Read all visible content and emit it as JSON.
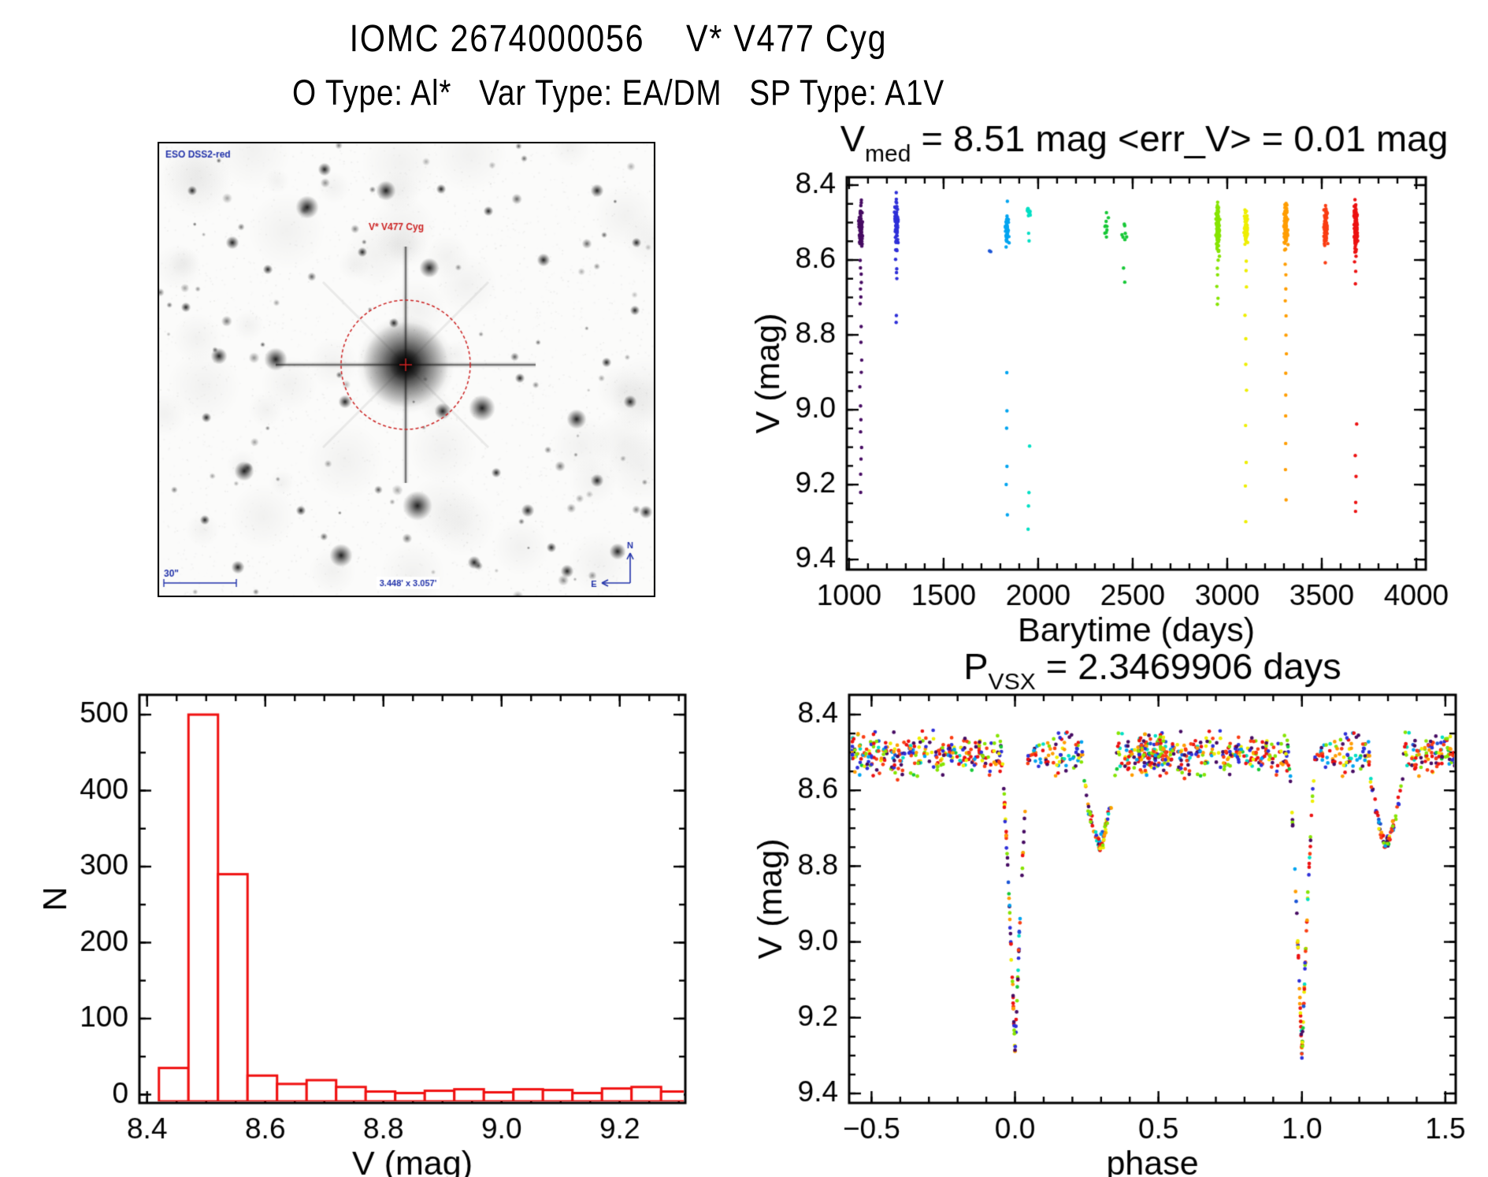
{
  "header": {
    "title": "IOMC 2674000056    V* V477 Cyg",
    "subtitle": "O Type: Al*   Var Type: EA/DM   SP Type: A1V"
  },
  "finder": {
    "survey_label": "ESO DSS2-red",
    "target_label": "V* V477 Cyg",
    "scale_label": "30\"",
    "fov_label": "3.448' x 3.057'",
    "compass_north": "N",
    "compass_east": "E",
    "label_color": "#2233aa",
    "marker_color": "#cc2222",
    "stars": [
      [
        212,
        35,
        4
      ],
      [
        290,
        62,
        6
      ],
      [
        190,
        83,
        7
      ],
      [
        95,
        128,
        4
      ],
      [
        140,
        162,
        3
      ],
      [
        345,
        160,
        6
      ],
      [
        420,
        88,
        3
      ],
      [
        558,
        62,
        4
      ],
      [
        608,
        128,
        3
      ],
      [
        78,
        272,
        5
      ],
      [
        150,
        276,
        7
      ],
      [
        238,
        330,
        4
      ],
      [
        362,
        342,
        5
      ],
      [
        460,
        300,
        3
      ],
      [
        532,
        352,
        6
      ],
      [
        606,
        214,
        3
      ],
      [
        110,
        418,
        6
      ],
      [
        182,
        468,
        3
      ],
      [
        412,
        338,
        8
      ],
      [
        330,
        462,
        9
      ],
      [
        233,
        525,
        7
      ],
      [
        470,
        468,
        4
      ],
      [
        558,
        430,
        4
      ],
      [
        300,
        230,
        3
      ],
      [
        584,
        520,
        5
      ],
      [
        520,
        545,
        4
      ],
      [
        62,
        350,
        3
      ],
      [
        44,
        62,
        3
      ],
      [
        600,
        330,
        4
      ],
      [
        102,
        540,
        4
      ],
      [
        402,
        534,
        4
      ],
      [
        490,
        150,
        4
      ],
      [
        570,
        280,
        3
      ],
      [
        260,
        140,
        3
      ],
      [
        60,
        480,
        3
      ],
      [
        500,
        515,
        3
      ],
      [
        620,
        470,
        4
      ],
      [
        36,
        210,
        3
      ],
      [
        430,
        420,
        3
      ],
      [
        360,
        60,
        3
      ]
    ]
  },
  "chart_data": [
    {
      "id": "lightcurve",
      "type": "scatter",
      "title_parts": [
        {
          "t": "V"
        },
        {
          "t": "med",
          "sub": true
        },
        {
          "t": " = 8.51 mag <err_V> = 0.01 mag"
        }
      ],
      "xlabel": "Barytime (days)",
      "ylabel": "V (mag)",
      "xlim": [
        988,
        4050
      ],
      "ylim_top": 8.379,
      "ylim_bottom": 9.427,
      "xticks": [
        1000,
        1500,
        2000,
        2500,
        3000,
        3500,
        4000
      ],
      "xtick_labels": [
        "1000",
        "1500",
        "2000",
        "2500",
        "3000",
        "3500",
        "4000"
      ],
      "xminor": 100,
      "yticks": [
        8.4,
        8.6,
        8.8,
        9.0,
        9.2,
        9.4
      ],
      "ytick_labels": [
        "8.4",
        "8.6",
        "8.8",
        "9.0",
        "9.2",
        "9.4"
      ],
      "yminor": 0.05,
      "clusters": [
        {
          "t": 1062,
          "color": "#470c63",
          "core_n": 85,
          "core_lo": 8.44,
          "core_hi": 8.59,
          "mid": [
            8.6,
            8.62,
            8.64,
            8.66,
            8.68,
            8.7,
            8.72
          ],
          "tail": [
            8.78,
            8.82,
            8.87,
            8.9,
            8.94,
            8.99,
            9.03,
            9.06,
            9.1,
            9.13,
            9.17,
            9.22
          ]
        },
        {
          "t": 1250,
          "color": "#2e2fd8",
          "core_n": 75,
          "core_lo": 8.42,
          "core_hi": 8.58,
          "mid": [
            8.6,
            8.62,
            8.63,
            8.65
          ],
          "tail": [
            8.75,
            8.77
          ]
        },
        {
          "t": 1755,
          "color": "#1b55d6",
          "core_n": 2,
          "core_lo": 8.565,
          "core_hi": 8.585,
          "mid": [],
          "tail": []
        },
        {
          "t": 1835,
          "color": "#00a4f0",
          "core_n": 45,
          "core_lo": 8.46,
          "core_hi": 8.57,
          "mid": [
            8.44
          ],
          "tail": [
            8.9,
            9.0,
            9.05,
            9.15,
            9.2,
            9.28
          ]
        },
        {
          "t": 1950,
          "color": "#00dfc4",
          "core_n": 9,
          "core_lo": 8.45,
          "core_hi": 8.5,
          "mid": [
            8.53,
            8.55
          ],
          "tail": [
            9.1,
            9.22,
            9.26,
            9.32
          ]
        },
        {
          "t": 2360,
          "color": "#17c837",
          "core_n": 10,
          "core_lo": 8.47,
          "core_hi": 8.55,
          "mid": [],
          "tail": []
        },
        {
          "t": 2455,
          "color": "#17c837",
          "core_n": 7,
          "core_lo": 8.49,
          "core_hi": 8.57,
          "mid": [
            8.62,
            8.66
          ],
          "tail": []
        },
        {
          "t": 2950,
          "color": "#86e400",
          "core_n": 110,
          "core_lo": 8.44,
          "core_hi": 8.59,
          "mid": [
            8.6,
            8.62,
            8.64,
            8.67,
            8.7,
            8.72
          ],
          "tail": []
        },
        {
          "t": 3100,
          "color": "#eeee00",
          "core_n": 60,
          "core_lo": 8.46,
          "core_hi": 8.57,
          "mid": [
            8.6,
            8.63,
            8.67
          ],
          "tail": [
            8.75,
            8.81,
            8.88,
            8.95,
            9.04,
            9.14,
            9.2,
            9.3
          ]
        },
        {
          "t": 3310,
          "color": "#ff9d00",
          "core_n": 95,
          "core_lo": 8.44,
          "core_hi": 8.58,
          "mid": [
            8.61,
            8.64,
            8.68,
            8.71
          ],
          "tail": [
            8.75,
            8.8,
            8.85,
            8.9,
            8.96,
            9.02,
            9.09,
            9.16,
            9.24
          ]
        },
        {
          "t": 3520,
          "color": "#fa3c12",
          "core_n": 85,
          "core_lo": 8.45,
          "core_hi": 8.57,
          "mid": [
            8.61
          ],
          "tail": []
        },
        {
          "t": 3680,
          "color": "#ec1111",
          "core_n": 110,
          "core_lo": 8.43,
          "core_hi": 8.59,
          "mid": [
            8.61,
            8.63,
            8.66
          ],
          "tail": [
            9.04,
            9.12,
            9.18,
            9.25,
            9.27
          ]
        }
      ]
    },
    {
      "id": "histogram",
      "type": "bar",
      "color": "#f01010",
      "xlabel": "V (mag)",
      "ylabel": "N",
      "bin_start": 8.42,
      "bin_width": 0.05,
      "values": [
        35,
        500,
        290,
        25,
        14,
        19,
        10,
        4,
        2,
        5,
        7,
        3,
        7,
        6,
        2,
        8,
        10,
        4
      ],
      "xlim": [
        8.387,
        9.311
      ],
      "ylim": [
        -11,
        526
      ],
      "xticks": [
        8.4,
        8.6,
        8.8,
        9.0,
        9.2
      ],
      "xtick_labels": [
        "8.4",
        "8.6",
        "8.8",
        "9.0",
        "9.2"
      ],
      "xminor": 0.05,
      "yticks": [
        0,
        100,
        200,
        300,
        400,
        500
      ],
      "ytick_labels": [
        "0",
        "100",
        "200",
        "300",
        "400",
        "500"
      ],
      "yminor": 50
    },
    {
      "id": "phase",
      "type": "scatter",
      "title_parts": [
        {
          "t": "P"
        },
        {
          "t": "VSX",
          "sub": true
        },
        {
          "t": " = 2.3469906 days"
        }
      ],
      "xlabel": "phase",
      "ylabel": "V (mag)",
      "xlim": [
        -0.578,
        1.536
      ],
      "ylim_top": 8.348,
      "ylim_bottom": 9.425,
      "xticks": [
        -0.5,
        0.0,
        0.5,
        1.0,
        1.5
      ],
      "xtick_labels": [
        "−0.5",
        "0.0",
        "0.5",
        "1.0",
        "1.5"
      ],
      "xminor": 0.1,
      "yticks": [
        8.4,
        8.6,
        8.8,
        9.0,
        9.2,
        9.4
      ],
      "ytick_labels": [
        "8.4",
        "8.6",
        "8.8",
        "9.0",
        "9.2",
        "9.4"
      ],
      "yminor": 0.05,
      "model": {
        "period_days": 2.3469906,
        "baseline": {
          "n": 560,
          "mean": 8.505,
          "sigma": 0.05
        },
        "primary": {
          "center": 0.0,
          "halfwidth": 0.048,
          "depth": 0.785,
          "n": 80
        },
        "secondary": {
          "center": 0.295,
          "halfwidth": 0.065,
          "depth": 0.225,
          "n": 70
        },
        "period_copy_offset": 1.0,
        "palette": [
          [
            "#470c63",
            10
          ],
          [
            "#2e2fd8",
            8
          ],
          [
            "#1b55d6",
            1
          ],
          [
            "#00a4f0",
            5
          ],
          [
            "#00dfc4",
            2
          ],
          [
            "#17c837",
            2
          ],
          [
            "#86e400",
            10
          ],
          [
            "#eeee00",
            6
          ],
          [
            "#ff9d00",
            9
          ],
          [
            "#fa3c12",
            8
          ],
          [
            "#ec1111",
            11
          ]
        ]
      }
    }
  ]
}
